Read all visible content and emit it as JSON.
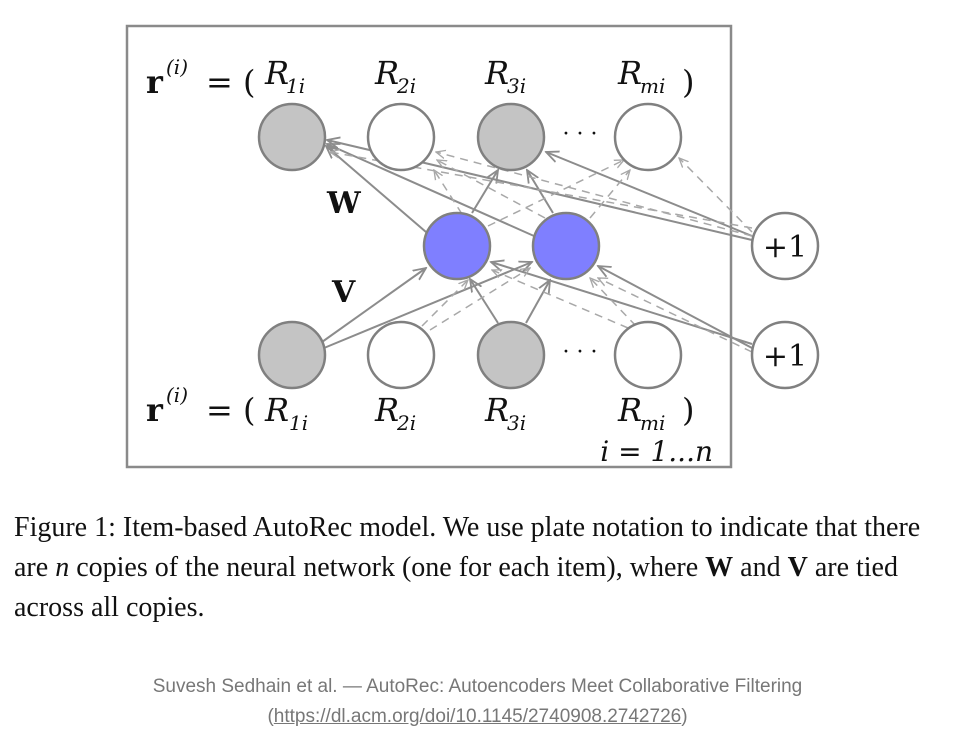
{
  "figure": {
    "vector_label_top": "r",
    "vector_label_bottom": "r",
    "superscript": "(i)",
    "equals": "= (",
    "inputs": [
      "R",
      "R",
      "R",
      "R"
    ],
    "subscripts": [
      "1i",
      "2i",
      "3i",
      "mi"
    ],
    "close_paren": ")",
    "ellipsis": "· · ·",
    "weight_w": "W",
    "weight_v": "V",
    "bias_labels": [
      "+1",
      "+1"
    ],
    "plate_label": "i = 1...n",
    "colors": {
      "observed_node": "#c4c4c4",
      "unobserved_node": "#ffffff",
      "hidden_node": "#7f7fff",
      "edge": "#8c8c8c",
      "dashed_edge": "#a8a8a8"
    }
  },
  "caption": {
    "prefix": "Figure 1:  Item-based AutoRec model.  We use plate notation to indicate that there are ",
    "n": "n",
    "middle": " copies of the neural network (one for each item), where ",
    "w": "W",
    "and": " and ",
    "v": "V",
    "suffix": " are tied across all copies."
  },
  "credit": {
    "text": "Suvesh Sedhain et al. — AutoRec: Autoencoders Meet Collaborative Filtering",
    "open": "(",
    "link": "https://dl.acm.org/doi/10.1145/2740908.2742726",
    "close": ")"
  }
}
